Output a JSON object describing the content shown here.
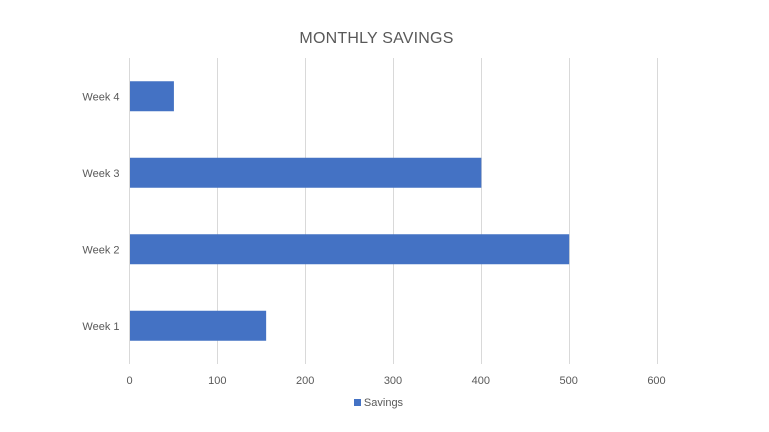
{
  "chart_data": {
    "type": "bar",
    "orientation": "horizontal",
    "title": "MONTHLY SAVINGS",
    "categories": [
      "Week 1",
      "Week 2",
      "Week 3",
      "Week 4"
    ],
    "series": [
      {
        "name": "Savings",
        "values": [
          155,
          500,
          400,
          50
        ],
        "color": "#4472c4"
      }
    ],
    "xlim": [
      0,
      600
    ],
    "xticks": [
      0,
      100,
      200,
      300,
      400,
      500,
      600
    ],
    "xlabel": "",
    "ylabel": "",
    "grid": "vertical",
    "legend_position": "bottom"
  }
}
